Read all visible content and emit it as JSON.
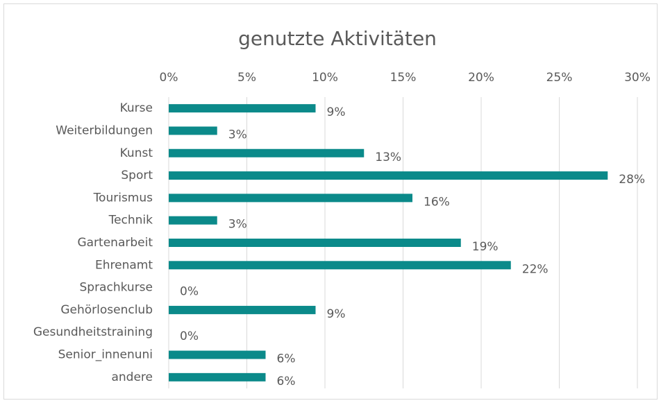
{
  "chart_data": {
    "type": "bar",
    "orientation": "horizontal",
    "title": "genutzte Aktivitäten",
    "categories": [
      "Kurse",
      "Weiterbildungen",
      "Kunst",
      "Sport",
      "Tourismus",
      "Technik",
      "Gartenarbeit",
      "Ehrenamt",
      "Sprachkurse",
      "Gehörlosenclub",
      "Gesundheitstraining",
      "Senior_innenuni",
      "andere"
    ],
    "values": [
      9.4,
      3.1,
      12.5,
      28.1,
      15.6,
      3.1,
      18.7,
      21.9,
      0,
      9.4,
      0,
      6.2,
      6.2
    ],
    "value_labels": [
      "9%",
      "3%",
      "13%",
      "28%",
      "16%",
      "3%",
      "19%",
      "22%",
      "0%",
      "9%",
      "0%",
      "6%",
      "6%"
    ],
    "color": "#0b8a8a",
    "xlim": [
      0,
      30
    ],
    "xticks": [
      {
        "value": 0,
        "label": "0%"
      },
      {
        "value": 5,
        "label": "5%"
      },
      {
        "value": 10,
        "label": "10%"
      },
      {
        "value": 15,
        "label": "15%"
      },
      {
        "value": 20,
        "label": "20%"
      },
      {
        "value": 25,
        "label": "25%"
      },
      {
        "value": 30,
        "label": "30%"
      }
    ],
    "grid": true
  }
}
